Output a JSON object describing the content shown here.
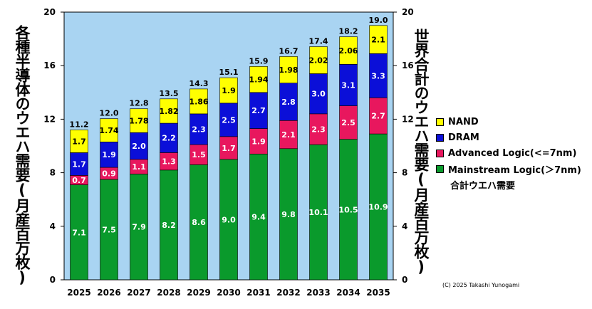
{
  "chart_data": {
    "type": "bar",
    "stacked": true,
    "categories": [
      "2025",
      "2026",
      "2027",
      "2028",
      "2029",
      "2030",
      "2031",
      "2032",
      "2033",
      "2034",
      "2035"
    ],
    "series": [
      {
        "name": "Mainstream Logic(＞7nm)",
        "color": "#0a9a2c",
        "values": [
          7.1,
          7.5,
          7.9,
          8.2,
          8.6,
          9.0,
          9.4,
          9.8,
          10.1,
          10.5,
          10.9
        ]
      },
      {
        "name": "Advanced Logic(<=7nm)",
        "color": "#e8175e",
        "values": [
          0.7,
          0.9,
          1.1,
          1.3,
          1.5,
          1.7,
          1.9,
          2.1,
          2.3,
          2.5,
          2.7
        ]
      },
      {
        "name": "DRAM",
        "color": "#0b0fd8",
        "values": [
          1.7,
          1.9,
          2.0,
          2.2,
          2.3,
          2.5,
          2.7,
          2.8,
          3.0,
          3.1,
          3.3
        ]
      },
      {
        "name": "NAND",
        "color": "#ffff00",
        "values": [
          1.7,
          1.74,
          1.78,
          1.82,
          1.86,
          1.9,
          1.94,
          1.98,
          2.02,
          2.06,
          2.1
        ]
      }
    ],
    "labels": {
      "Mainstream Logic(＞7nm)": [
        "7.1",
        "7.5",
        "7.9",
        "8.2",
        "8.6",
        "9.0",
        "9.4",
        "9.8",
        "10.1",
        "10.5",
        "10.9"
      ],
      "Advanced Logic(<=7nm)": [
        "0.7",
        "0.9",
        "1.1",
        "1.3",
        "1.5",
        "1.7",
        "1.9",
        "2.1",
        "2.3",
        "2.5",
        "2.7"
      ],
      "DRAM": [
        "1.7",
        "1.9",
        "2.0",
        "2.2",
        "2.3",
        "2.5",
        "2.7",
        "2.8",
        "3.0",
        "3.1",
        "3.3"
      ],
      "NAND": [
        "1.7",
        "1.74",
        "1.78",
        "1.82",
        "1.86",
        "1.9",
        "1.94",
        "1.98",
        "2.02",
        "2.06",
        "2.1"
      ]
    },
    "totals": [
      "11.2",
      "12.0",
      "12.8",
      "13.5",
      "14.3",
      "15.1",
      "15.9",
      "16.7",
      "17.4",
      "18.2",
      "19.0"
    ],
    "total_label": "合計ウエハ需要",
    "ylabel_left": "各種半導体のウエハ需要(月産百万枚)",
    "ylabel_right": "世界合計のウエハ需要(月産百万枚)",
    "ylim": [
      0,
      20
    ],
    "yticks": [
      "0",
      "4",
      "8",
      "12",
      "16",
      "20"
    ],
    "legend_position": "right",
    "plot_background": "#a9d4f2",
    "grid": false
  },
  "legend": [
    {
      "label": "NAND",
      "color": "#ffff00"
    },
    {
      "label": "DRAM",
      "color": "#0b0fd8"
    },
    {
      "label": "Advanced Logic(<=7nm)",
      "color": "#e8175e"
    },
    {
      "label": "Mainstream Logic(＞7nm)",
      "color": "#0a9a2c"
    }
  ],
  "copyright": "(C) 2025 Takashi Yunogami"
}
